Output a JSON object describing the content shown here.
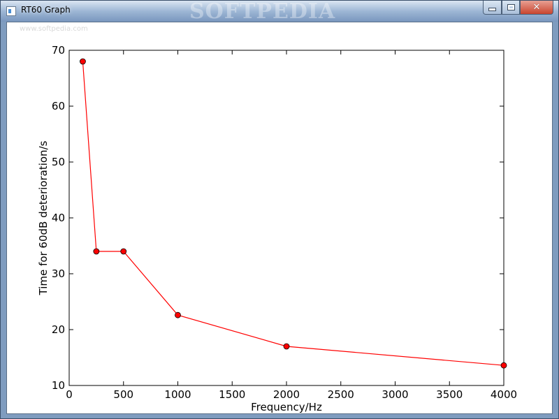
{
  "window": {
    "title": "RT60 Graph",
    "watermark": "SOFTPEDIA",
    "watermark_url": "www.softpedia.com",
    "controls": {
      "minimize": "minimize",
      "maximize": "maximize",
      "close": "✕"
    }
  },
  "chart_data": {
    "type": "line",
    "title": "",
    "xlabel": "Frequency/Hz",
    "ylabel": "Time for 60dB deterioration/s",
    "xlim": [
      0,
      4000
    ],
    "ylim": [
      10,
      70
    ],
    "xticks": [
      0,
      500,
      1000,
      1500,
      2000,
      2500,
      3000,
      3500,
      4000
    ],
    "yticks": [
      10,
      20,
      30,
      40,
      50,
      60,
      70
    ],
    "grid": false,
    "series": [
      {
        "color": "#ff0000",
        "marker": "circle",
        "x": [
          125,
          250,
          500,
          1000,
          2000,
          4000
        ],
        "y": [
          68,
          34,
          34,
          22.6,
          17,
          13.6
        ]
      }
    ]
  }
}
